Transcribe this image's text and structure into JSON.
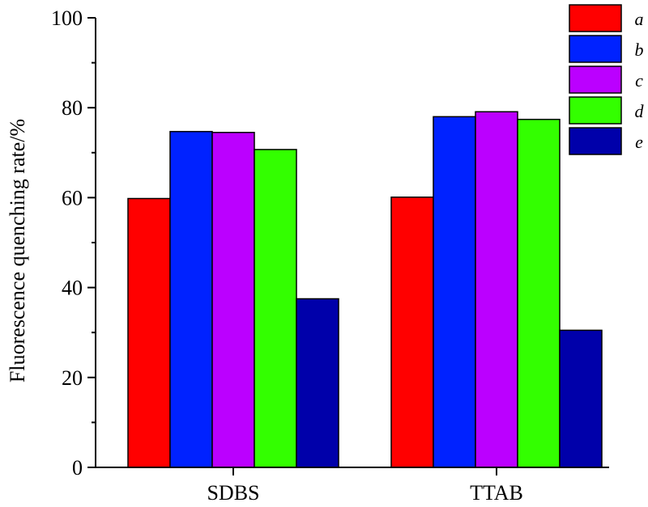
{
  "chart_data": {
    "type": "bar",
    "title": "",
    "xlabel": "",
    "ylabel": "Fluorescence quenching rate/%",
    "categories": [
      "SDBS",
      "TTAB"
    ],
    "ylim": [
      0,
      100
    ],
    "yticks": [
      0,
      20,
      40,
      60,
      80,
      100
    ],
    "grid": false,
    "legend_position": "top-right",
    "series": [
      {
        "name": "a",
        "color": "#ff0000",
        "values": [
          59.8,
          60.1
        ]
      },
      {
        "name": "b",
        "color": "#0022ff",
        "values": [
          74.7,
          78.0
        ]
      },
      {
        "name": "c",
        "color": "#bb00ff",
        "values": [
          74.5,
          79.1
        ]
      },
      {
        "name": "d",
        "color": "#33ff00",
        "values": [
          70.7,
          77.4
        ]
      },
      {
        "name": "e",
        "color": "#0000aa",
        "values": [
          37.5,
          30.5
        ]
      }
    ]
  }
}
